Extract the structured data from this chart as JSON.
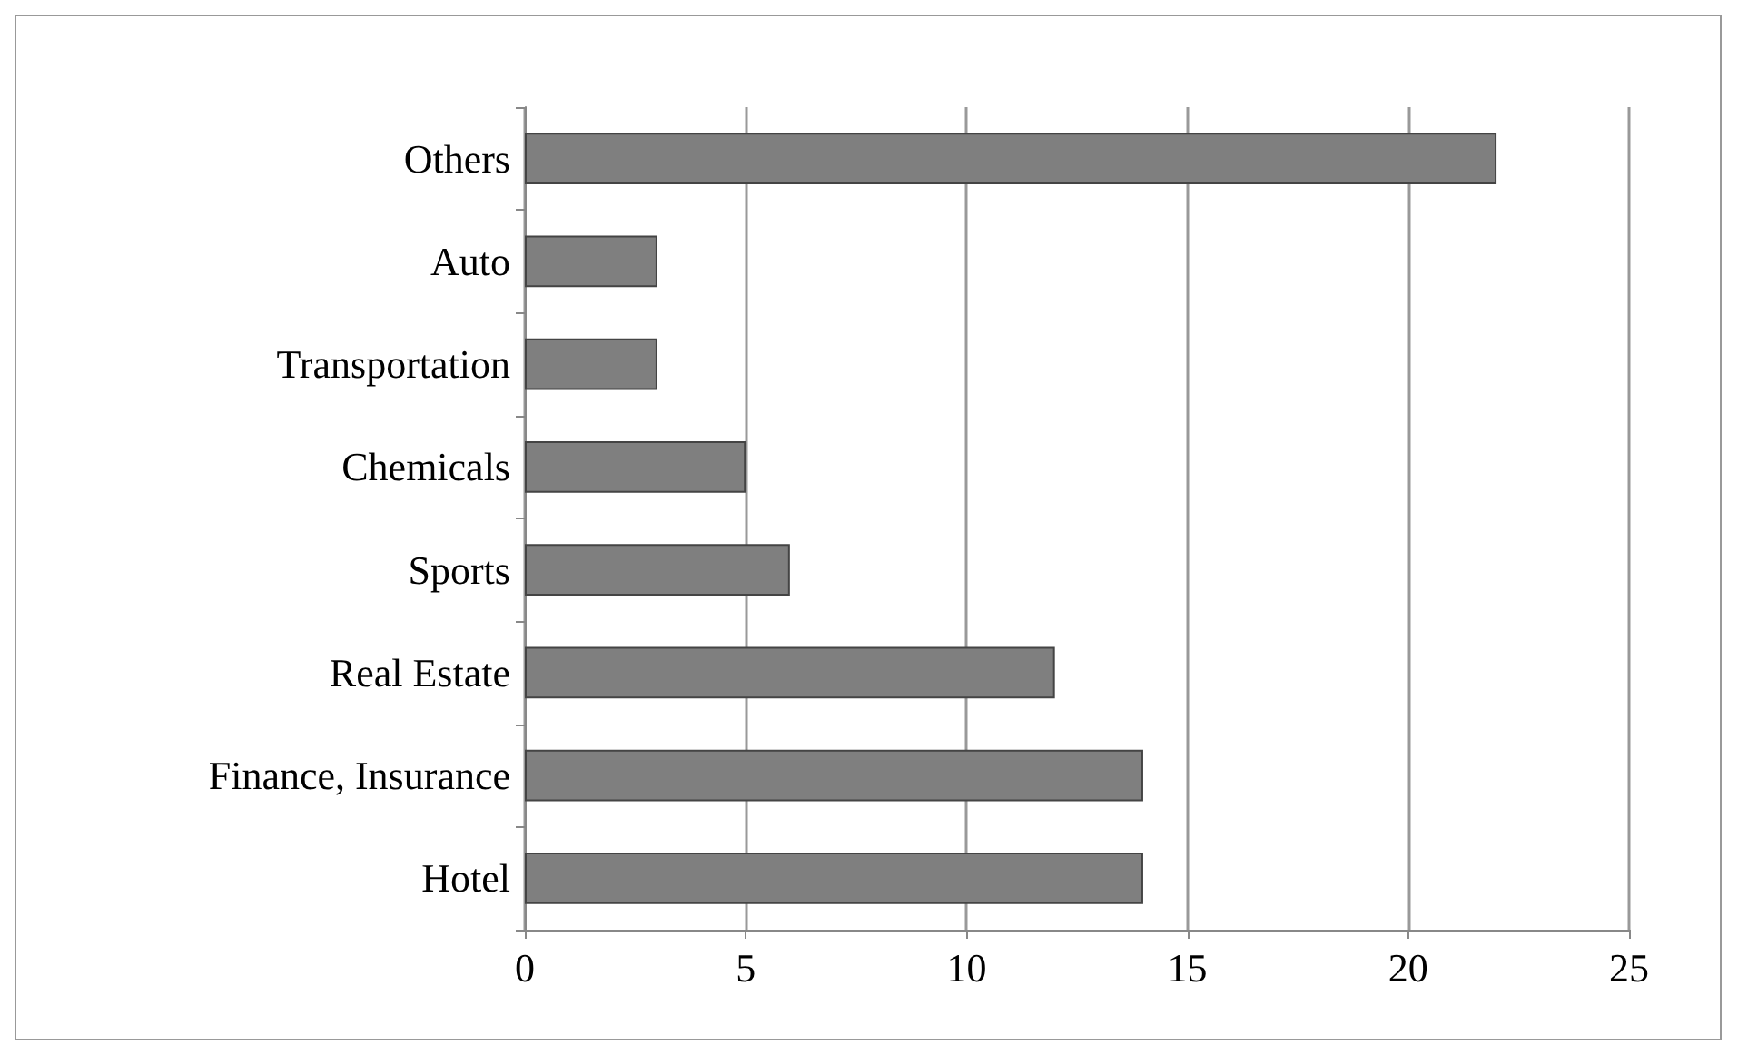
{
  "chart_data": {
    "type": "bar",
    "orientation": "horizontal",
    "categories": [
      "Others",
      "Auto",
      "Transportation",
      "Chemicals",
      "Sports",
      "Real Estate",
      "Finance, Insurance",
      "Hotel"
    ],
    "values": [
      22,
      3,
      3,
      5,
      6,
      12,
      14,
      14
    ],
    "color": "#7f7f7f",
    "xlim": [
      0,
      25
    ],
    "xticks": [
      0,
      5,
      10,
      15,
      20,
      25
    ],
    "grid": "x"
  }
}
